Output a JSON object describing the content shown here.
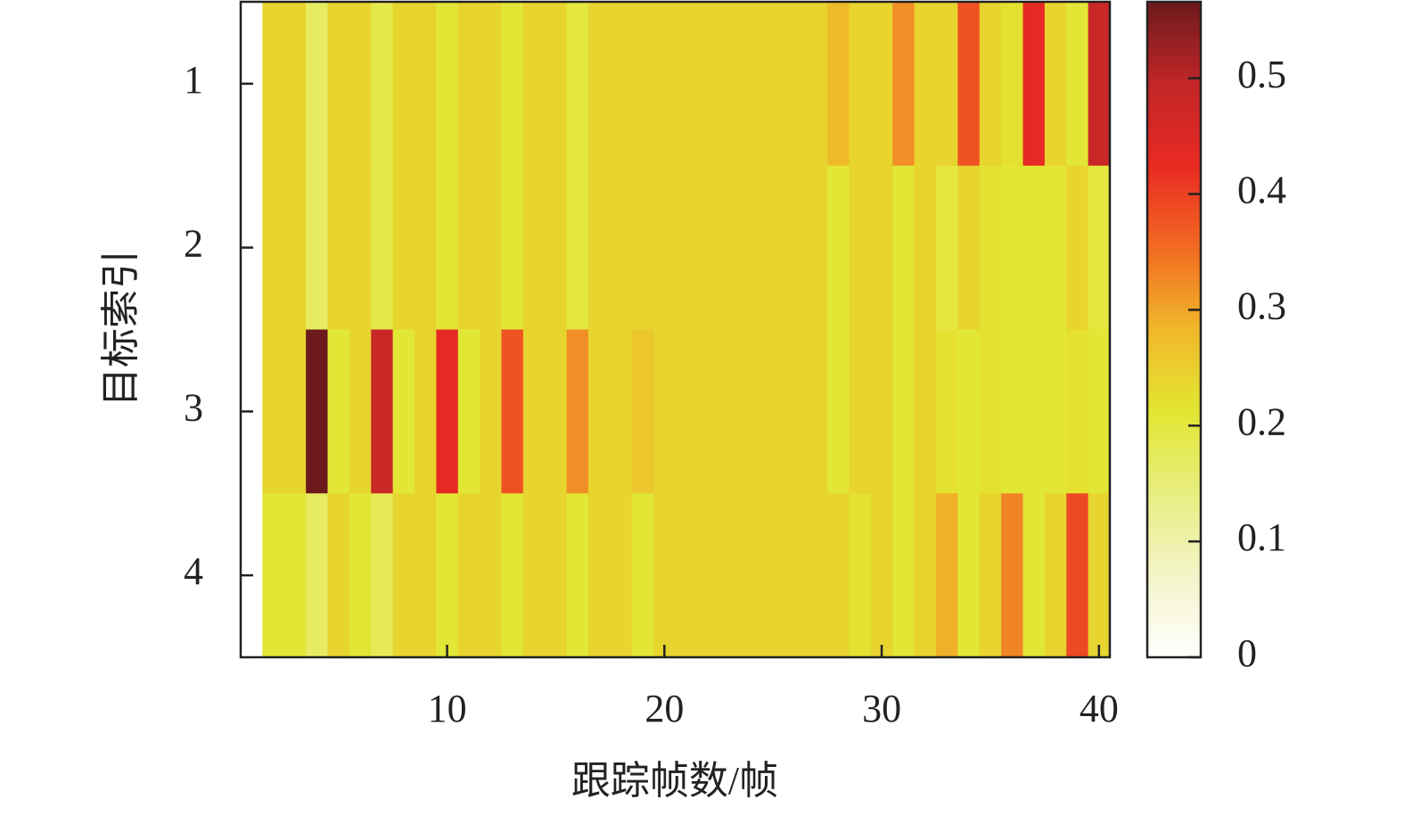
{
  "chart_data": {
    "type": "heatmap",
    "x_label": "跟踪帧数/帧",
    "y_label": "目标索引",
    "x": [
      1,
      2,
      3,
      4,
      5,
      6,
      7,
      8,
      9,
      10,
      11,
      12,
      13,
      14,
      15,
      16,
      17,
      18,
      19,
      20,
      21,
      22,
      23,
      24,
      25,
      26,
      27,
      28,
      29,
      30,
      31,
      32,
      33,
      34,
      35,
      36,
      37,
      38,
      39,
      40
    ],
    "y": [
      1,
      2,
      3,
      4
    ],
    "z": [
      [
        0,
        0.24,
        0.24,
        0.17,
        0.24,
        0.24,
        0.19,
        0.24,
        0.24,
        0.21,
        0.24,
        0.24,
        0.21,
        0.24,
        0.24,
        0.2,
        0.24,
        0.24,
        0.24,
        0.24,
        0.24,
        0.24,
        0.24,
        0.24,
        0.24,
        0.24,
        0.24,
        0.28,
        0.24,
        0.24,
        0.32,
        0.24,
        0.24,
        0.38,
        0.24,
        0.22,
        0.43,
        0.24,
        0.21,
        0.48
      ],
      [
        0,
        0.24,
        0.24,
        0.17,
        0.24,
        0.24,
        0.19,
        0.24,
        0.24,
        0.21,
        0.24,
        0.24,
        0.21,
        0.24,
        0.24,
        0.2,
        0.24,
        0.24,
        0.24,
        0.24,
        0.24,
        0.24,
        0.24,
        0.24,
        0.24,
        0.24,
        0.24,
        0.21,
        0.24,
        0.24,
        0.21,
        0.24,
        0.2,
        0.24,
        0.22,
        0.21,
        0.21,
        0.21,
        0.24,
        0.2
      ],
      [
        0,
        0.24,
        0.24,
        0.566,
        0.21,
        0.24,
        0.48,
        0.21,
        0.24,
        0.43,
        0.21,
        0.24,
        0.38,
        0.24,
        0.24,
        0.32,
        0.24,
        0.24,
        0.26,
        0.24,
        0.24,
        0.24,
        0.24,
        0.24,
        0.24,
        0.24,
        0.24,
        0.21,
        0.24,
        0.24,
        0.21,
        0.24,
        0.22,
        0.21,
        0.22,
        0.21,
        0.21,
        0.21,
        0.22,
        0.21
      ],
      [
        0,
        0.21,
        0.21,
        0.17,
        0.24,
        0.21,
        0.18,
        0.24,
        0.24,
        0.21,
        0.24,
        0.24,
        0.21,
        0.24,
        0.24,
        0.21,
        0.24,
        0.24,
        0.21,
        0.24,
        0.24,
        0.24,
        0.24,
        0.24,
        0.24,
        0.24,
        0.24,
        0.24,
        0.22,
        0.24,
        0.21,
        0.24,
        0.29,
        0.21,
        0.24,
        0.33,
        0.21,
        0.24,
        0.39,
        0.24
      ]
    ],
    "xlim": [
      0.5,
      40.5
    ],
    "xticks": [
      10,
      20,
      30,
      40
    ],
    "ylim": [
      0.5,
      4.5
    ],
    "yticks": [
      1,
      2,
      3,
      4
    ],
    "zlim": [
      0,
      0.566
    ],
    "zticks": [
      0,
      0.1,
      0.2,
      0.3,
      0.4,
      0.5
    ],
    "colormap": [
      "#ffffff",
      "#f3f4c8",
      "#e8ee80",
      "#e2e632",
      "#f0b82a",
      "#f26a22",
      "#e92a23",
      "#c22628",
      "#6c1a1c"
    ]
  }
}
